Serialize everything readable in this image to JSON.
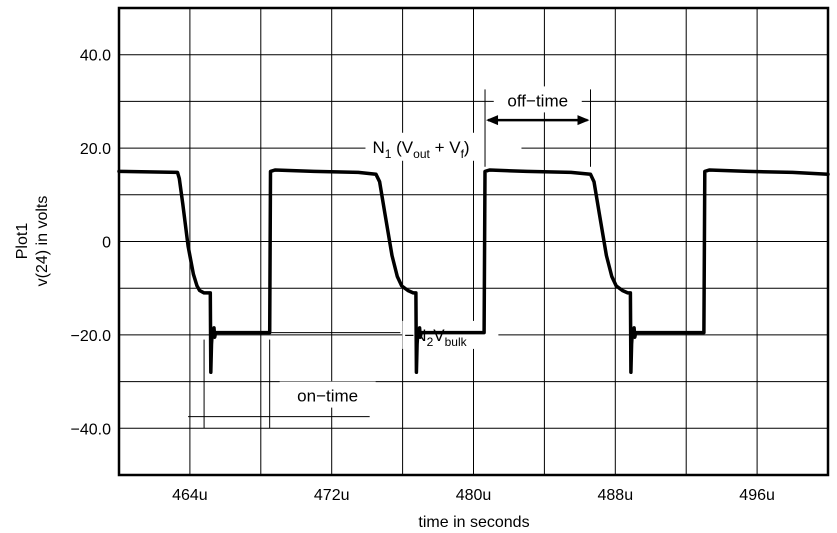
{
  "chart_data": {
    "type": "line",
    "title": "",
    "xlabel": "time in seconds",
    "ylabel_line1": "Plot1",
    "ylabel_line2": "v(24) in volts",
    "xlim": [
      460,
      500
    ],
    "ylim": [
      -50,
      50
    ],
    "x_unit_suffix": "u",
    "x_major_ticks": [
      464,
      472,
      480,
      488,
      496
    ],
    "x_minor_ticks": [
      460,
      468,
      476,
      484,
      492
    ],
    "x_tick_labels": [
      "464u",
      "472u",
      "480u",
      "488u",
      "496u"
    ],
    "y_ticks": [
      40,
      20,
      0,
      -20,
      -40
    ],
    "y_tick_labels": [
      "40.0",
      "20.0",
      "0",
      "−20.0",
      "−40.0"
    ],
    "y_grid": [
      40,
      30,
      20,
      10,
      0,
      -10,
      -20,
      -30,
      -40
    ],
    "grid": true,
    "colors": {
      "trace": "#000000",
      "grid": "#000000",
      "background": "#ffffff"
    },
    "series": [
      {
        "x": [
          460.0,
          463.3,
          463.4,
          463.6,
          463.9,
          464.2,
          464.4,
          464.55,
          464.8,
          465.0,
          465.15,
          465.18,
          465.22,
          465.27,
          465.3,
          465.36,
          465.4,
          465.45,
          465.6,
          468.5,
          468.55,
          468.8,
          471.0,
          473.5,
          474.5,
          474.7,
          475.0,
          475.4,
          475.7,
          475.95,
          476.3,
          476.6,
          476.75,
          476.78,
          476.82,
          476.87,
          476.9,
          476.96,
          477.0,
          477.05,
          477.2,
          480.6,
          480.65,
          480.9,
          483.0,
          485.5,
          486.6,
          486.8,
          487.1,
          487.5,
          487.8,
          488.05,
          488.4,
          488.7,
          488.85,
          488.88,
          488.92,
          488.97,
          489.0,
          489.06,
          489.1,
          489.15,
          489.3,
          493.0,
          493.05,
          493.3,
          495.5,
          498.0,
          500.0
        ],
        "y": [
          15.0,
          14.8,
          13.5,
          8.0,
          -1.0,
          -7.0,
          -9.5,
          -10.5,
          -11.0,
          -11.0,
          -11.0,
          -28.0,
          -22.0,
          -19.0,
          -20.5,
          -18.5,
          -20.5,
          -19.5,
          -19.5,
          -19.5,
          15.0,
          15.3,
          15.0,
          14.8,
          14.4,
          12.8,
          6.0,
          -3.0,
          -7.5,
          -9.5,
          -10.5,
          -11.0,
          -11.0,
          -28.0,
          -22.0,
          -19.0,
          -20.5,
          -18.5,
          -20.5,
          -19.5,
          -19.5,
          -19.5,
          15.0,
          15.3,
          15.0,
          14.8,
          14.4,
          12.8,
          6.0,
          -3.0,
          -7.5,
          -9.5,
          -10.5,
          -11.0,
          -11.0,
          -28.0,
          -22.0,
          -19.0,
          -20.5,
          -18.5,
          -20.5,
          -19.5,
          -19.5,
          -19.5,
          15.0,
          15.3,
          15.0,
          14.8,
          14.4
        ]
      }
    ],
    "annotations": {
      "n1": {
        "main": "N",
        "sub1": "1",
        "mid1": " (V",
        "sub2": "out",
        "mid2": " + V",
        "sub3": "f",
        "end": ")",
        "x": 474.3,
        "y": 19.0
      },
      "n2": {
        "main": "−N",
        "sub1": "2",
        "mid1": "V",
        "sub2": "bulk",
        "x": 476.1,
        "y": -20.0
      },
      "off_time": {
        "label": "off−time",
        "x_start": 480.65,
        "x_end": 486.6,
        "y_label": 30.0,
        "y_arrow": 26.0
      },
      "on_time": {
        "label": "on−time",
        "x_start": 464.8,
        "x_end": 468.5,
        "y_label": -33.0,
        "y_line": -37.5
      }
    }
  }
}
